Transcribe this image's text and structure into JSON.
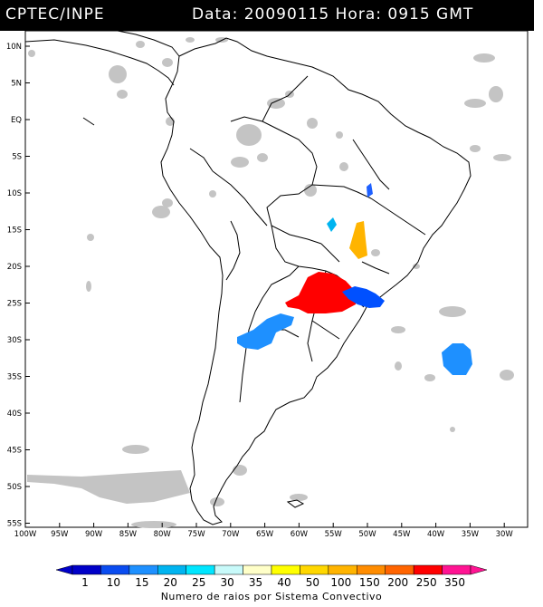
{
  "header": {
    "source": "CPTEC/INPE",
    "datetime": "Data: 20090115 Hora: 0915 GMT"
  },
  "map": {
    "lat_labels": [
      "10N",
      "5N",
      "EQ",
      "5S",
      "10S",
      "15S",
      "20S",
      "25S",
      "30S",
      "35S",
      "40S",
      "45S",
      "50S",
      "55S"
    ],
    "lon_labels": [
      "100W",
      "95W",
      "90W",
      "85W",
      "80W",
      "75W",
      "70W",
      "65W",
      "60W",
      "55W",
      "50W",
      "45W",
      "40W",
      "35W",
      "30W"
    ],
    "colors": {
      "land_outline": "#000000",
      "cloud_gray": "#bfbfbf",
      "border": "#000000"
    }
  },
  "legend": {
    "labels": [
      "1",
      "10",
      "15",
      "20",
      "25",
      "30",
      "35",
      "40",
      "50",
      "100",
      "150",
      "200",
      "250",
      "350"
    ],
    "colors": [
      "#0000c8",
      "#0a4cf0",
      "#1e90ff",
      "#00b4f0",
      "#00e6ff",
      "#c8fafa",
      "#ffffc8",
      "#ffff00",
      "#ffd700",
      "#ffb400",
      "#ff8c00",
      "#ff6400",
      "#ff0000",
      "#ff1493"
    ],
    "title": "Numero de raios por Sistema Convectivo"
  }
}
